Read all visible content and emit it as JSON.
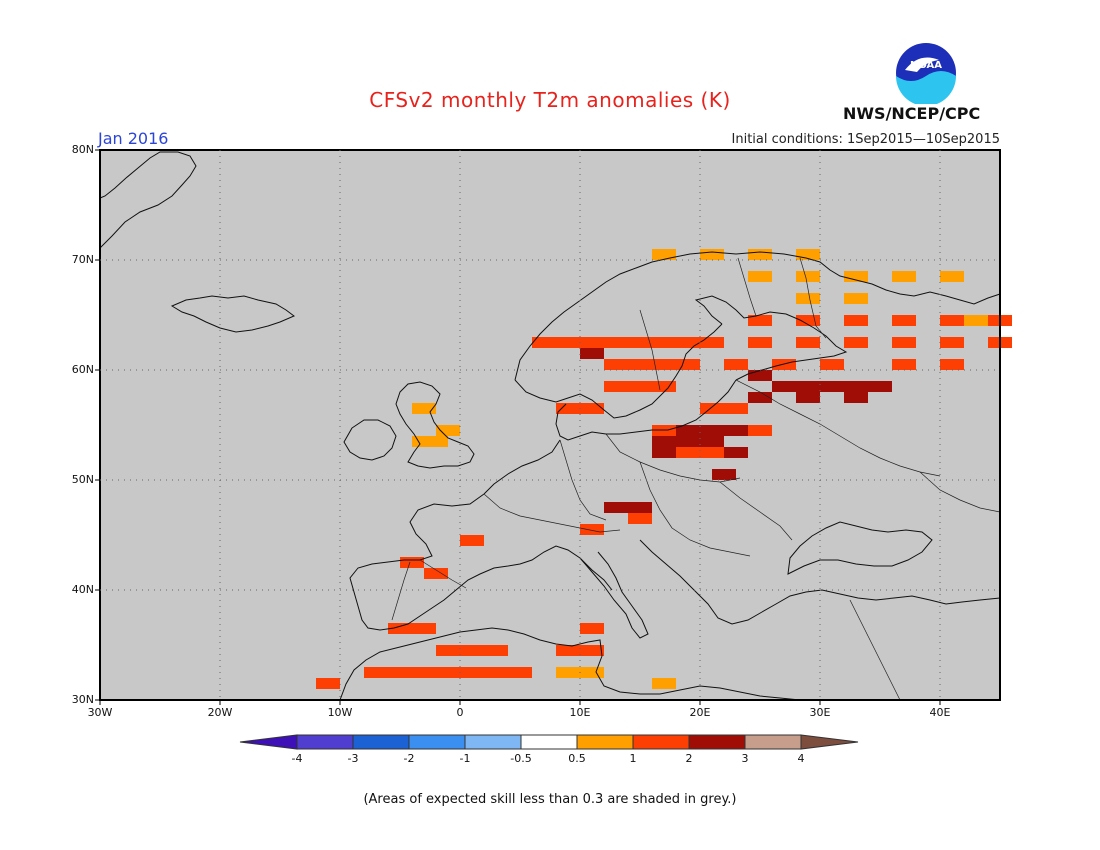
{
  "title": "CFSv2 monthly T2m anomalies (K)",
  "month_label": "Jan 2016",
  "initial_conditions": "Initial conditions: 1Sep2015—10Sep2015",
  "org": "NWS/NCEP/CPC",
  "logo": {
    "icon": "noaa-logo-icon",
    "text": "NOAA"
  },
  "footnote": "(Areas of expected skill less than 0.3 are shaded in grey.)",
  "map": {
    "lon_range": [
      -30,
      45
    ],
    "lat_range": [
      30,
      80
    ],
    "lat_labels": [
      "80N",
      "70N",
      "60N",
      "50N",
      "40N",
      "30N"
    ],
    "lon_labels": [
      "30W",
      "20W",
      "10W",
      "0",
      "10E",
      "20E",
      "30E",
      "40E"
    ],
    "grid": true,
    "background_color": "#c8c8c8"
  },
  "colorbar": {
    "labels": [
      "-4",
      "-3",
      "-2",
      "-1",
      "-0.5",
      "0.5",
      "1",
      "2",
      "3",
      "4"
    ],
    "colors": [
      "#3d10b8",
      "#4f3ecf",
      "#1d62d4",
      "#3b8ff0",
      "#7eb7f3",
      "#ffffff",
      "#ff9f00",
      "#fe3f03",
      "#a00d07",
      "#c79d8c",
      "#7d4d3e"
    ]
  },
  "anomaly_regions": [
    {
      "class": "0.5-1",
      "color": "#ff9f00",
      "cells": [
        [
          16,
          70
        ],
        [
          20,
          70
        ],
        [
          24,
          70
        ],
        [
          28,
          70
        ],
        [
          24,
          68
        ],
        [
          28,
          68
        ],
        [
          32,
          68
        ],
        [
          36,
          68
        ],
        [
          40,
          68
        ],
        [
          28,
          66
        ],
        [
          32,
          66
        ],
        [
          42,
          64
        ],
        [
          -4,
          56
        ],
        [
          -2,
          54
        ],
        [
          -4,
          53
        ],
        [
          -3,
          53
        ],
        [
          8,
          32
        ],
        [
          10,
          32
        ],
        [
          16,
          31
        ]
      ]
    },
    {
      "class": "1-2",
      "color": "#fe3f03",
      "cells": [
        [
          6,
          62
        ],
        [
          8,
          62
        ],
        [
          10,
          62
        ],
        [
          12,
          62
        ],
        [
          14,
          62
        ],
        [
          16,
          62
        ],
        [
          18,
          62
        ],
        [
          20,
          62
        ],
        [
          12,
          60
        ],
        [
          14,
          60
        ],
        [
          16,
          60
        ],
        [
          18,
          60
        ],
        [
          24,
          62
        ],
        [
          28,
          62
        ],
        [
          32,
          62
        ],
        [
          36,
          62
        ],
        [
          40,
          62
        ],
        [
          44,
          62
        ],
        [
          24,
          64
        ],
        [
          28,
          64
        ],
        [
          32,
          64
        ],
        [
          36,
          64
        ],
        [
          40,
          64
        ],
        [
          44,
          64
        ],
        [
          22,
          60
        ],
        [
          26,
          60
        ],
        [
          30,
          60
        ],
        [
          36,
          60
        ],
        [
          40,
          60
        ],
        [
          12,
          58
        ],
        [
          14,
          58
        ],
        [
          16,
          58
        ],
        [
          8,
          56
        ],
        [
          10,
          56
        ],
        [
          20,
          56
        ],
        [
          22,
          56
        ],
        [
          16,
          54
        ],
        [
          20,
          54
        ],
        [
          24,
          54
        ],
        [
          18,
          52
        ],
        [
          20,
          52
        ],
        [
          22,
          52
        ],
        [
          14,
          46
        ],
        [
          -6,
          36
        ],
        [
          -4,
          36
        ],
        [
          -2,
          34
        ],
        [
          0,
          34
        ],
        [
          2,
          34
        ],
        [
          -8,
          32
        ],
        [
          -6,
          32
        ],
        [
          -4,
          32
        ],
        [
          -2,
          32
        ],
        [
          0,
          32
        ],
        [
          2,
          32
        ],
        [
          4,
          32
        ],
        [
          8,
          34
        ],
        [
          10,
          34
        ],
        [
          10,
          36
        ],
        [
          -12,
          31
        ],
        [
          -5,
          42
        ],
        [
          -3,
          41
        ],
        [
          0,
          44
        ],
        [
          10,
          45
        ]
      ]
    },
    {
      "class": "2-3",
      "color": "#a00d07",
      "cells": [
        [
          10,
          61
        ],
        [
          24,
          59
        ],
        [
          26,
          58
        ],
        [
          28,
          58
        ],
        [
          30,
          58
        ],
        [
          32,
          58
        ],
        [
          34,
          58
        ],
        [
          24,
          57
        ],
        [
          28,
          57
        ],
        [
          32,
          57
        ],
        [
          18,
          54
        ],
        [
          20,
          54
        ],
        [
          22,
          54
        ],
        [
          16,
          53
        ],
        [
          18,
          53
        ],
        [
          20,
          53
        ],
        [
          16,
          52
        ],
        [
          22,
          52
        ],
        [
          12,
          47
        ],
        [
          14,
          47
        ],
        [
          21,
          50
        ]
      ]
    }
  ]
}
